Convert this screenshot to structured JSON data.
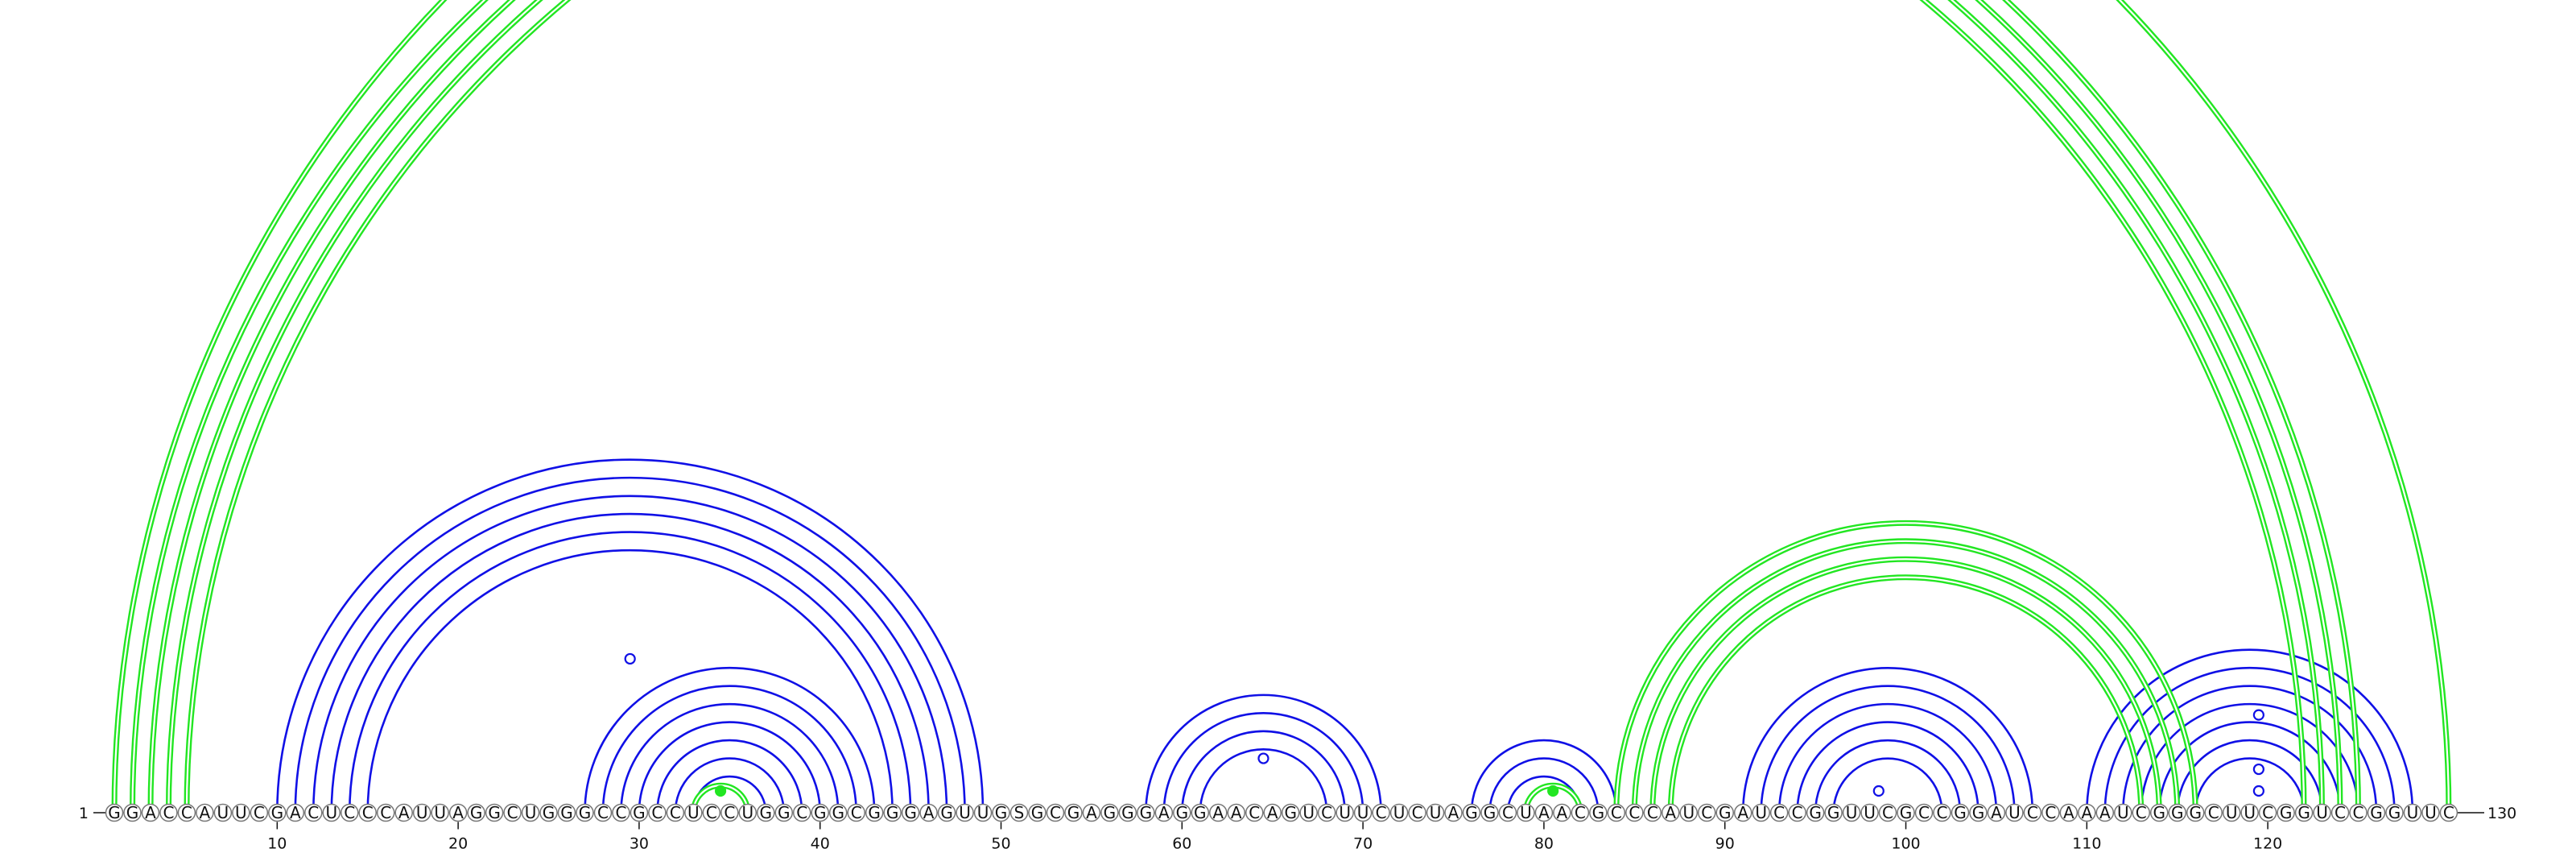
{
  "sequence": "GGACCAUUCGACUCCCAUUAGGCUGGGCCGCCUCCUGGCGGCGGGAGUUGSGCGAGGGAGGAACAGUCUUCUCUAGGCUAACGCCCAUCGAUCCGGUUCGCCGGAUCCAAAUCGGGCUUCGGUCCGGUUC",
  "start_label": "1",
  "end_label": "130",
  "tick_labels": [
    "10",
    "20",
    "30",
    "40",
    "50",
    "60",
    "70",
    "80",
    "90",
    "100",
    "110",
    "120"
  ],
  "colors": {
    "stem": "#1010e6",
    "pseudoknot": "#22e622",
    "backbone": "#888888"
  },
  "blue_helices": [
    {
      "i": 10,
      "j": 49,
      "n": 6
    },
    {
      "i": 27,
      "j": 43,
      "n": 7
    },
    {
      "i": 58,
      "j": 71,
      "n": 4
    },
    {
      "i": 76,
      "j": 84,
      "n": 3
    },
    {
      "i": 91,
      "j": 107,
      "n": 6
    },
    {
      "i": 110,
      "j": 128,
      "n": 7
    }
  ],
  "green_helices": [
    {
      "i": 1,
      "j": 130,
      "n": 1
    },
    {
      "i": 2,
      "j": 125,
      "n": 4
    },
    {
      "i": 84,
      "j": 116,
      "n": 4
    },
    {
      "i": 33,
      "j": 36,
      "n": 1
    },
    {
      "i": 79,
      "j": 82,
      "n": 1
    }
  ],
  "markers": [
    {
      "pos": 29.5,
      "height": 8.5,
      "color": "blue",
      "filled": false
    },
    {
      "pos": 64.5,
      "height": 3.0,
      "color": "blue",
      "filled": false
    },
    {
      "pos": 98.5,
      "height": 1.2,
      "color": "blue",
      "filled": false
    },
    {
      "pos": 119.5,
      "height": 1.2,
      "color": "blue",
      "filled": false
    },
    {
      "pos": 119.5,
      "height": 2.4,
      "color": "blue",
      "filled": false
    },
    {
      "pos": 119.5,
      "height": 5.4,
      "color": "blue",
      "filled": false
    },
    {
      "pos": 34.5,
      "height": 1.2,
      "color": "green",
      "filled": true
    },
    {
      "pos": 80.5,
      "height": 1.2,
      "color": "green",
      "filled": true
    }
  ]
}
